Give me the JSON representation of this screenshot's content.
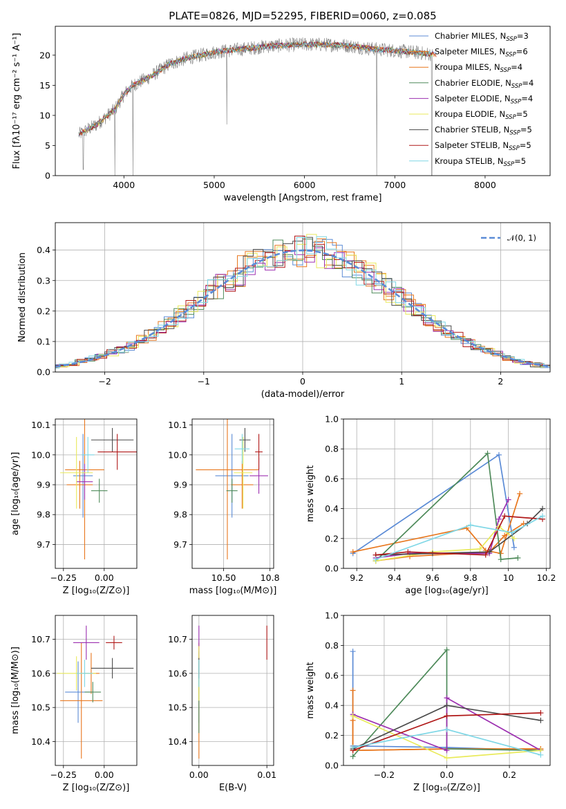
{
  "figure_title": "PLATE=0826, MJD=52295, FIBERID=0060, z=0.085",
  "models": [
    {
      "name": "Chabrier MILES",
      "n_ssp": "3",
      "color": "#5b8bd6"
    },
    {
      "name": "Salpeter MILES",
      "n_ssp": "6",
      "color": "#e8761c"
    },
    {
      "name": "Kroupa MILES",
      "n_ssp": "4",
      "color": "#e8761c"
    },
    {
      "name": "Chabrier ELODIE",
      "n_ssp": "4",
      "color": "#4e8a5a"
    },
    {
      "name": "Salpeter ELODIE",
      "n_ssp": "4",
      "color": "#9c2fb0"
    },
    {
      "name": "Kroupa ELODIE",
      "n_ssp": "5",
      "color": "#e9ea5a"
    },
    {
      "name": "Chabrier STELIB",
      "n_ssp": "5",
      "color": "#4a4a4a"
    },
    {
      "name": "Salpeter STELIB",
      "n_ssp": "5",
      "color": "#b01818"
    },
    {
      "name": "Kroupa STELIB",
      "n_ssp": "5",
      "color": "#7fd7e6"
    }
  ],
  "legend_nssp_prefix": "N",
  "legend_nssp_sub": "SSP",
  "chart_data": [
    {
      "id": "spectrum",
      "type": "line",
      "title": "PLATE=0826, MJD=52295, FIBERID=0060, z=0.085",
      "xlabel": "wavelength [Angstrom, rest frame]",
      "ylabel": "Flux [fλ10⁻¹⁷ erg cm⁻² s⁻¹ A⁻¹]",
      "xlim": [
        3240,
        8720
      ],
      "ylim": [
        0,
        24.8
      ],
      "xticks": [
        4000,
        5000,
        6000,
        7000,
        8000
      ],
      "yticks": [
        0,
        5,
        10,
        15,
        20
      ],
      "legend_loc": "upper right",
      "continuum": [
        [
          3500,
          6.8
        ],
        [
          3700,
          8.5
        ],
        [
          3900,
          11
        ],
        [
          4000,
          13.5
        ],
        [
          4100,
          15
        ],
        [
          4300,
          16.5
        ],
        [
          4500,
          18.5
        ],
        [
          4700,
          19.5
        ],
        [
          5000,
          20.5
        ],
        [
          5300,
          21
        ],
        [
          5600,
          21.5
        ],
        [
          6000,
          21.8
        ],
        [
          6400,
          21.7
        ],
        [
          6800,
          21
        ],
        [
          7200,
          20.5
        ],
        [
          7500,
          20
        ],
        [
          7800,
          19.5
        ],
        [
          8100,
          19
        ],
        [
          8400,
          19
        ],
        [
          8700,
          19
        ]
      ],
      "noise_amplitude": 1.1,
      "absorption_lines": [
        [
          3550,
          1.0
        ],
        [
          4100,
          0.0
        ],
        [
          5140,
          8.5
        ],
        [
          6800,
          0.0
        ],
        [
          7410,
          0.0
        ],
        [
          3900,
          0.0
        ]
      ]
    },
    {
      "id": "residuals",
      "type": "histogram",
      "xlabel": "(data-model)/error",
      "ylabel": "Normed distribution",
      "xlim": [
        -2.5,
        2.5
      ],
      "ylim": [
        0,
        0.49
      ],
      "xticks": [
        -2,
        -1,
        0,
        1,
        2
      ],
      "yticks": [
        0.0,
        0.1,
        0.2,
        0.3,
        0.4
      ],
      "grid": true,
      "bin_width": 0.1,
      "reference_curve": {
        "label": "𝒩(0, 1)",
        "mean": 0,
        "sigma": 1,
        "color": "#5b8bd6",
        "style": "dashed"
      },
      "legend_loc": "upper right"
    },
    {
      "id": "age_vs_z",
      "type": "scatter",
      "xlabel": "Z [log₁₀(Z/Z⊙)]",
      "ylabel": "age  [log₁₀(age/yr)]",
      "xlim": [
        -0.3,
        0.2
      ],
      "ylim": [
        9.62,
        10.12
      ],
      "xticks": [
        -0.25,
        0.0
      ],
      "yticks": [
        9.7,
        9.8,
        9.9,
        10.0,
        10.1
      ],
      "grid": true,
      "points": [
        {
          "x": -0.13,
          "y": 9.93,
          "xerr": 0.06,
          "yerr": 0.14
        },
        {
          "x": -0.12,
          "y": 9.95,
          "xerr": 0.12,
          "yerr": 0.3
        },
        {
          "x": -0.15,
          "y": 9.9,
          "xerr": 0.08,
          "yerr": 0.08
        },
        {
          "x": -0.03,
          "y": 9.88,
          "xerr": 0.05,
          "yerr": 0.04
        },
        {
          "x": -0.12,
          "y": 9.91,
          "xerr": 0.05,
          "yerr": 0.06
        },
        {
          "x": -0.17,
          "y": 9.94,
          "xerr": 0.1,
          "yerr": 0.12
        },
        {
          "x": 0.05,
          "y": 10.05,
          "xerr": 0.13,
          "yerr": 0.04
        },
        {
          "x": 0.08,
          "y": 10.01,
          "xerr": 0.12,
          "yerr": 0.06
        },
        {
          "x": -0.1,
          "y": 10.0,
          "xerr": 0.04,
          "yerr": 0.06
        }
      ]
    },
    {
      "id": "age_vs_mass",
      "type": "scatter",
      "xlabel": "mass [log₁₀(M/M⊙)]",
      "ylabel": "",
      "xlim": [
        10.33,
        10.77
      ],
      "ylim": [
        9.62,
        10.12
      ],
      "xticks": [
        10.5,
        10.75
      ],
      "yticks": [
        9.7,
        9.8,
        9.9,
        10.0,
        10.1
      ],
      "grid": true,
      "points": [
        {
          "x": 10.545,
          "y": 9.93,
          "xerr": 0.09,
          "yerr": 0.14
        },
        {
          "x": 10.52,
          "y": 9.95,
          "xerr": 0.17,
          "yerr": 0.3
        },
        {
          "x": 10.6,
          "y": 9.9,
          "xerr": 0.06,
          "yerr": 0.08
        },
        {
          "x": 10.545,
          "y": 9.88,
          "xerr": 0.03,
          "yerr": 0.04
        },
        {
          "x": 10.69,
          "y": 9.93,
          "xerr": 0.05,
          "yerr": 0.06
        },
        {
          "x": 10.605,
          "y": 9.94,
          "xerr": 0.05,
          "yerr": 0.12
        },
        {
          "x": 10.615,
          "y": 10.05,
          "xerr": 0.03,
          "yerr": 0.04
        },
        {
          "x": 10.69,
          "y": 10.01,
          "xerr": 0.02,
          "yerr": 0.06
        },
        {
          "x": 10.6,
          "y": 10.02,
          "xerr": 0.04,
          "yerr": 0.05
        }
      ]
    },
    {
      "id": "massweight_vs_age",
      "type": "line",
      "xlabel": "age  [log₁₀(age/yr)]",
      "ylabel": "mass weight",
      "xlim": [
        9.13,
        10.22
      ],
      "ylim": [
        0,
        1.0
      ],
      "xticks": [
        9.2,
        9.4,
        9.6,
        9.8,
        10.0,
        10.2
      ],
      "yticks": [
        0.0,
        0.2,
        0.4,
        0.6,
        0.8,
        1.0
      ],
      "grid": true,
      "series": [
        {
          "x": [
            9.18,
            9.95,
            10.03
          ],
          "y": [
            0.1,
            0.76,
            0.14
          ]
        },
        {
          "x": [
            9.18,
            9.78,
            9.88,
            9.96,
            10.06
          ],
          "y": [
            0.11,
            0.27,
            0.12,
            0.1,
            0.5
          ]
        },
        {
          "x": [
            9.3,
            9.48,
            9.9,
            9.98,
            10.08
          ],
          "y": [
            0.05,
            0.08,
            0.11,
            0.22,
            0.3
          ]
        },
        {
          "x": [
            9.3,
            9.89,
            9.96,
            10.05
          ],
          "y": [
            0.05,
            0.77,
            0.06,
            0.07
          ]
        },
        {
          "x": [
            9.3,
            9.48,
            9.9,
            9.95,
            10.0
          ],
          "y": [
            0.07,
            0.1,
            0.1,
            0.33,
            0.46
          ]
        },
        {
          "x": [
            9.3,
            9.6,
            9.85,
            9.95,
            10.03
          ],
          "y": [
            0.05,
            0.11,
            0.13,
            0.28,
            0.2
          ]
        },
        {
          "x": [
            9.3,
            9.6,
            9.9,
            10.1,
            10.18
          ],
          "y": [
            0.09,
            0.1,
            0.11,
            0.3,
            0.4
          ]
        },
        {
          "x": [
            9.3,
            9.47,
            9.88,
            9.98,
            10.18
          ],
          "y": [
            0.09,
            0.11,
            0.09,
            0.35,
            0.33
          ]
        },
        {
          "x": [
            9.3,
            9.8,
            10.02,
            10.18
          ],
          "y": [
            0.06,
            0.29,
            0.24,
            0.35
          ]
        }
      ]
    },
    {
      "id": "mass_vs_z",
      "type": "scatter",
      "xlabel": "Z [log₁₀(Z/Z⊙)]",
      "ylabel": "mass [log₁₀(M/M⊙)]",
      "xlim": [
        -0.3,
        0.2
      ],
      "ylim": [
        10.33,
        10.77
      ],
      "xticks": [
        -0.25,
        0.0
      ],
      "yticks": [
        10.4,
        10.5,
        10.6,
        10.7
      ],
      "grid": true,
      "points": [
        {
          "x": -0.16,
          "y": 10.545,
          "xerr": 0.08,
          "yerr": 0.09
        },
        {
          "x": -0.14,
          "y": 10.52,
          "xerr": 0.13,
          "yerr": 0.17
        },
        {
          "x": -0.08,
          "y": 10.6,
          "xerr": 0.05,
          "yerr": 0.06
        },
        {
          "x": -0.07,
          "y": 10.545,
          "xerr": 0.05,
          "yerr": 0.03
        },
        {
          "x": -0.11,
          "y": 10.69,
          "xerr": 0.08,
          "yerr": 0.05
        },
        {
          "x": -0.17,
          "y": 10.6,
          "xerr": 0.12,
          "yerr": 0.05
        },
        {
          "x": 0.05,
          "y": 10.615,
          "xerr": 0.13,
          "yerr": 0.03
        },
        {
          "x": 0.06,
          "y": 10.69,
          "xerr": 0.05,
          "yerr": 0.02
        },
        {
          "x": -0.12,
          "y": 10.6,
          "xerr": 0.05,
          "yerr": 0.04
        }
      ]
    },
    {
      "id": "mass_vs_ebv",
      "type": "scatter",
      "xlabel": "E(B-V)",
      "ylabel": "",
      "xlim": [
        -0.001,
        0.011
      ],
      "ylim": [
        10.33,
        10.77
      ],
      "xticks": [
        0.0,
        0.01
      ],
      "yticks": [
        10.4,
        10.5,
        10.6,
        10.7
      ],
      "grid": true,
      "points": [
        {
          "x": 0.0,
          "y": 10.545,
          "xerr": 0.0,
          "yerr": 0.09
        },
        {
          "x": 0.0,
          "y": 10.52,
          "xerr": 0.0,
          "yerr": 0.17
        },
        {
          "x": 0.0,
          "y": 10.6,
          "xerr": 0.0,
          "yerr": 0.06
        },
        {
          "x": 0.0,
          "y": 10.545,
          "xerr": 0.0,
          "yerr": 0.12
        },
        {
          "x": 0.0,
          "y": 10.69,
          "xerr": 0.0,
          "yerr": 0.05
        },
        {
          "x": 0.0,
          "y": 10.6,
          "xerr": 0.0,
          "yerr": 0.08
        },
        {
          "x": 0.0,
          "y": 10.615,
          "xerr": 0.0,
          "yerr": 0.03
        },
        {
          "x": 0.01,
          "y": 10.69,
          "xerr": 0.0,
          "yerr": 0.05
        },
        {
          "x": 0.0,
          "y": 10.6,
          "xerr": 0.0,
          "yerr": 0.04
        }
      ]
    },
    {
      "id": "massweight_vs_z",
      "type": "line",
      "xlabel": "Z [log₁₀(Z/Z⊙)]",
      "ylabel": "mass weight",
      "xlim": [
        -0.33,
        0.33
      ],
      "ylim": [
        0,
        1.0
      ],
      "xticks": [
        -0.2,
        0.0,
        0.2
      ],
      "yticks": [
        0.0,
        0.2,
        0.4,
        0.6,
        0.8,
        1.0
      ],
      "grid": true,
      "series": [
        {
          "x": [
            -0.3,
            -0.3,
            0.0,
            0.3
          ],
          "y": [
            0.76,
            0.13,
            0.12,
            0.1
          ]
        },
        {
          "x": [
            -0.3,
            -0.3,
            0.0,
            0.3
          ],
          "y": [
            0.5,
            0.1,
            0.11,
            0.11
          ]
        },
        {
          "x": [
            -0.3,
            -0.3,
            0.0,
            0.3
          ],
          "y": [
            0.3,
            0.1,
            0.11,
            0.11
          ]
        },
        {
          "x": [
            -0.3,
            0.0,
            0.0,
            0.3
          ],
          "y": [
            0.06,
            0.77,
            0.11,
            0.1
          ]
        },
        {
          "x": [
            -0.3,
            0.0,
            0.0,
            0.3
          ],
          "y": [
            0.34,
            0.1,
            0.45,
            0.1
          ]
        },
        {
          "x": [
            -0.3,
            0.0,
            0.3
          ],
          "y": [
            0.33,
            0.05,
            0.1
          ]
        },
        {
          "x": [
            -0.3,
            0.0,
            0.3
          ],
          "y": [
            0.11,
            0.4,
            0.3
          ]
        },
        {
          "x": [
            -0.3,
            0.0,
            0.3
          ],
          "y": [
            0.1,
            0.33,
            0.35
          ]
        },
        {
          "x": [
            -0.3,
            0.0,
            0.3
          ],
          "y": [
            0.12,
            0.24,
            0.07
          ]
        }
      ]
    }
  ]
}
